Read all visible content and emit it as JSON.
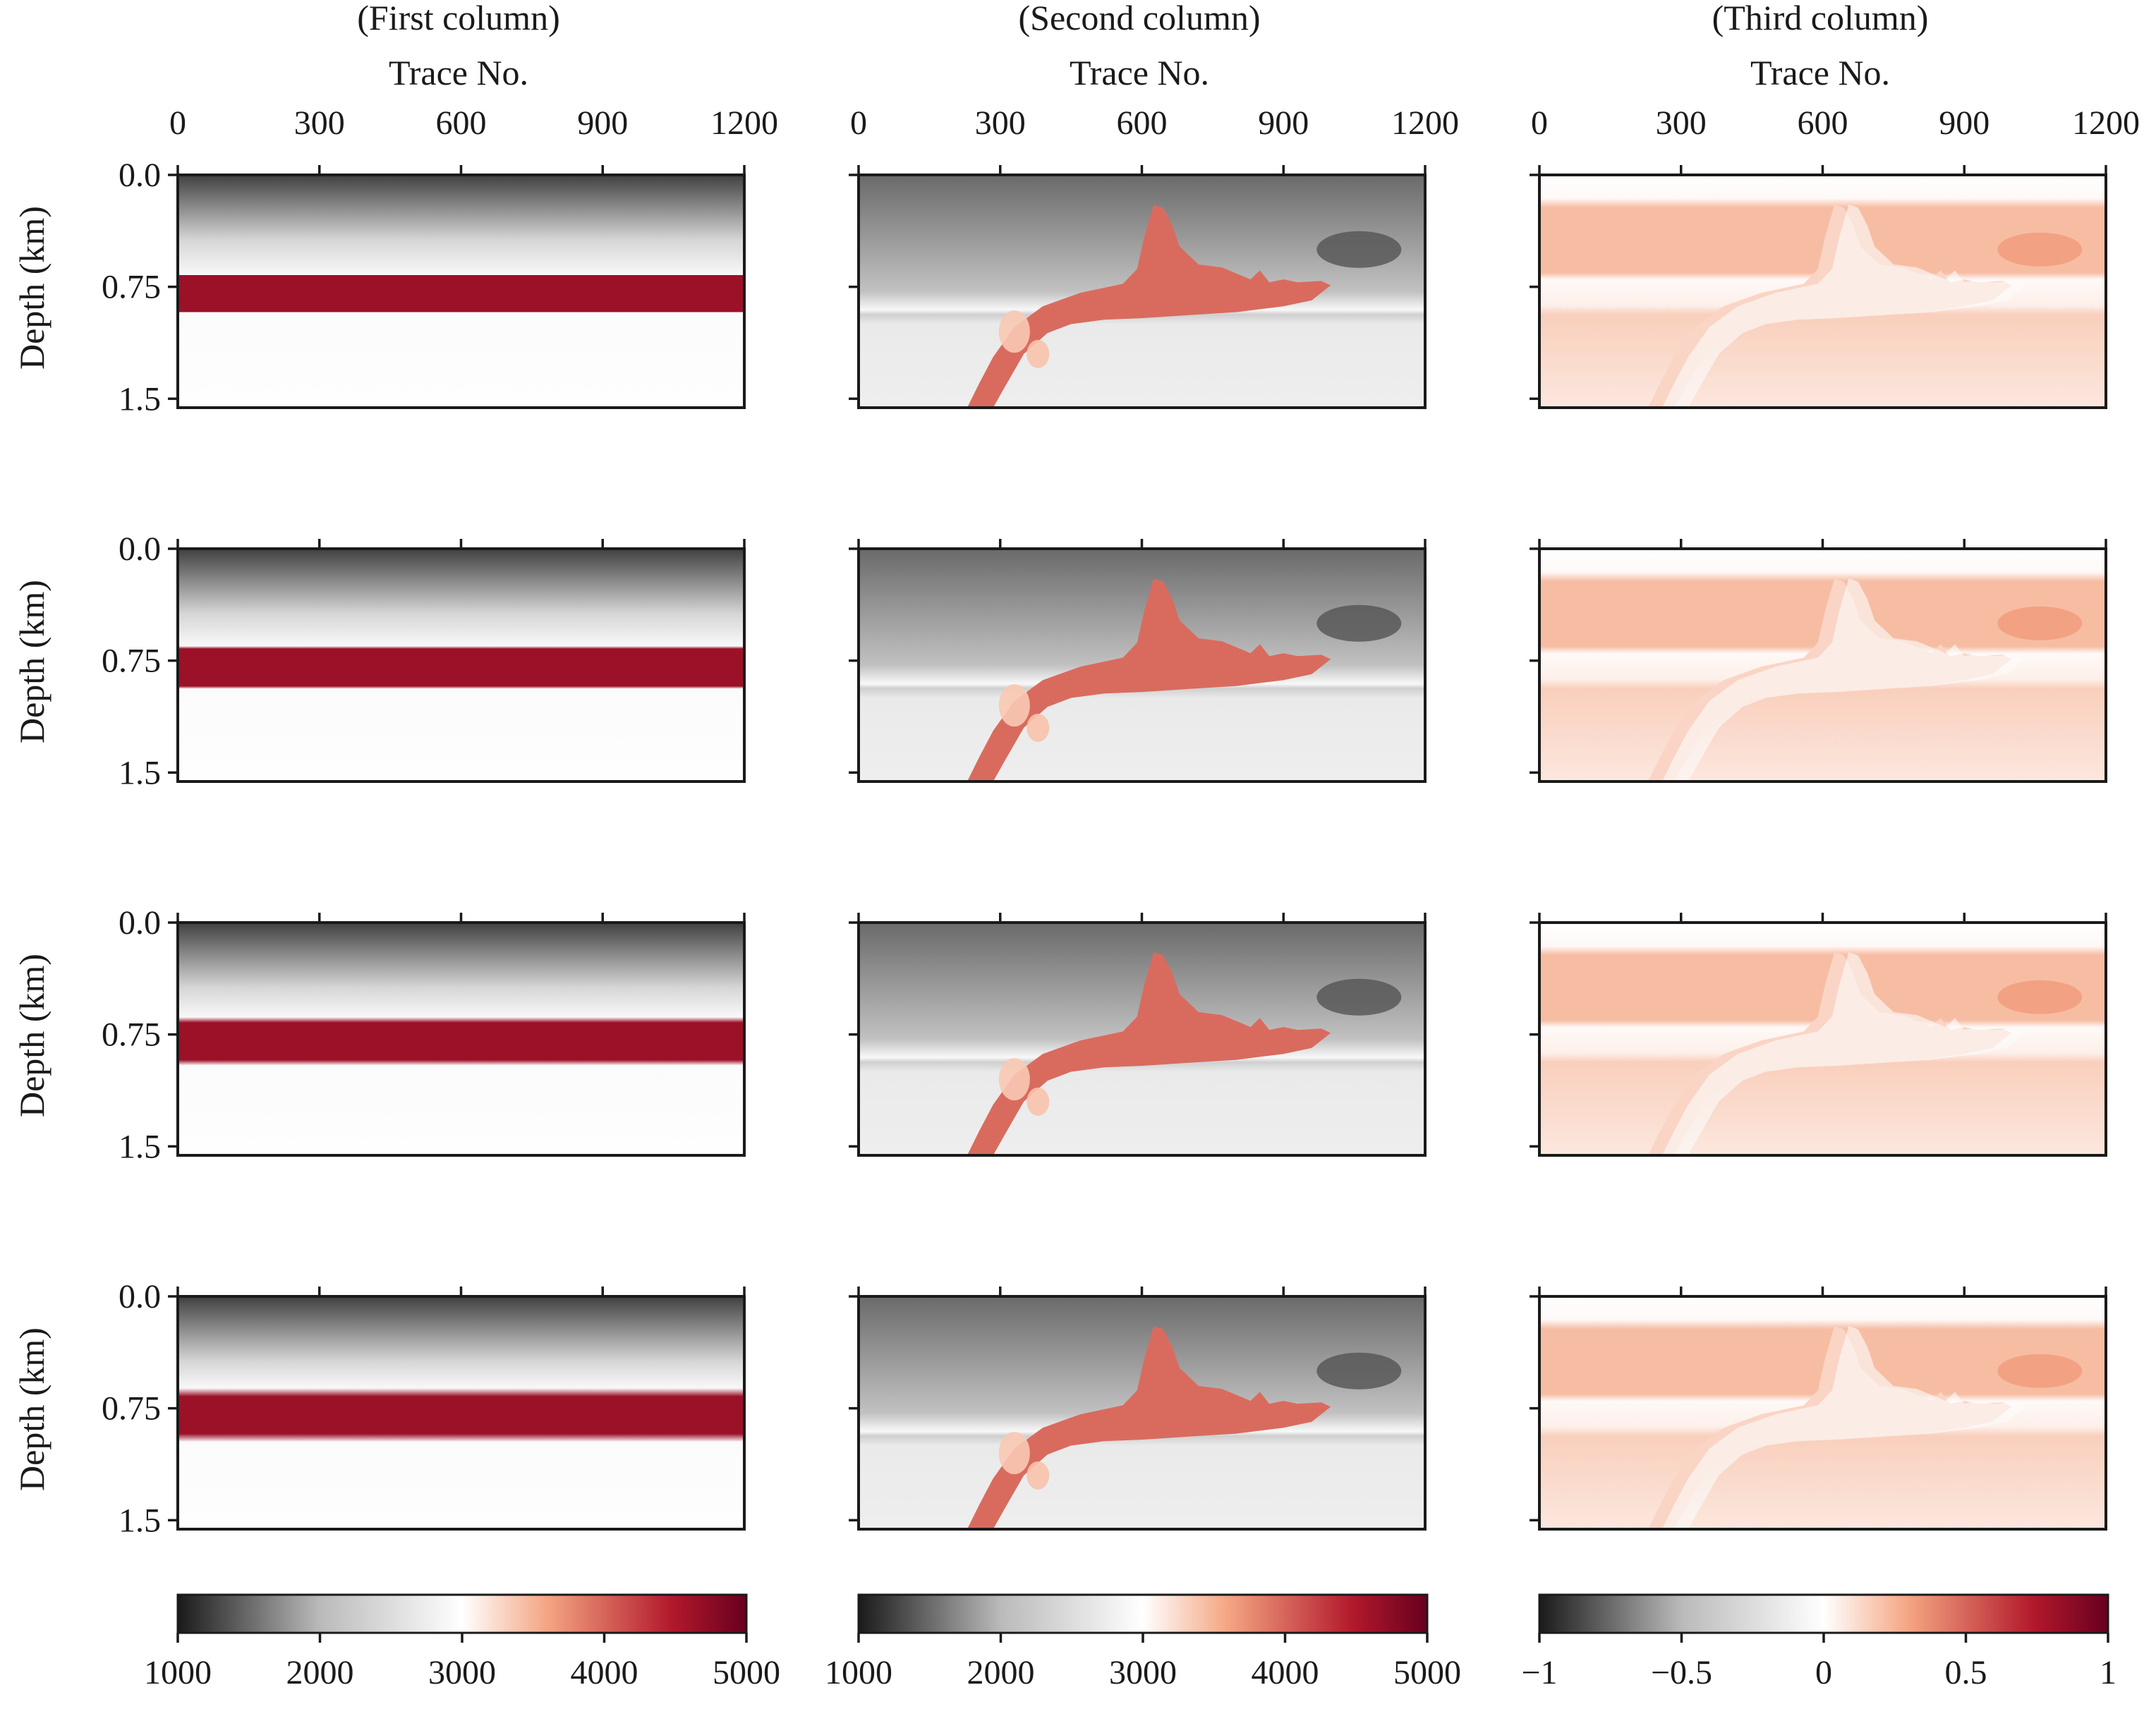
{
  "chart_data": {
    "type": "heatmap",
    "layout": {
      "rows": 4,
      "columns": 3
    },
    "columns": [
      {
        "title": "(First column)",
        "kind": "layered",
        "xlabel": "Trace No."
      },
      {
        "title": "(Second column)",
        "kind": "salt",
        "xlabel": "Trace No."
      },
      {
        "title": "(Third column)",
        "kind": "difference",
        "xlabel": "Trace No."
      }
    ],
    "rows": [
      {
        "layer_top": 0.43,
        "layer_bottom": 0.59,
        "blur": 0.0
      },
      {
        "layer_top": 0.43,
        "layer_bottom": 0.59,
        "blur": 0.012
      },
      {
        "layer_top": 0.43,
        "layer_bottom": 0.59,
        "blur": 0.024
      },
      {
        "layer_top": 0.43,
        "layer_bottom": 0.59,
        "blur": 0.036
      }
    ],
    "x_axis": {
      "label": "Trace No.",
      "range": [
        0,
        1200
      ],
      "ticks": [
        0,
        300,
        600,
        900,
        1200
      ],
      "tick_labels": [
        "0",
        "300",
        "600",
        "900",
        "1200"
      ]
    },
    "y_axis": {
      "label": "Depth (km)",
      "range": [
        0,
        1.56
      ],
      "ticks": [
        0.0,
        0.75,
        1.5
      ],
      "tick_labels": [
        "0.0",
        "0.75",
        "1.5"
      ]
    },
    "colorbars": [
      {
        "range": [
          1000,
          5000
        ],
        "ticks": [
          1000,
          2000,
          3000,
          4000,
          5000
        ],
        "tick_labels": [
          "1000",
          "2000",
          "3000",
          "4000",
          "5000"
        ]
      },
      {
        "range": [
          1000,
          5000
        ],
        "ticks": [
          1000,
          2000,
          3000,
          4000,
          5000
        ],
        "tick_labels": [
          "1000",
          "2000",
          "3000",
          "4000",
          "5000"
        ]
      },
      {
        "range": [
          -1,
          1
        ],
        "ticks": [
          -1,
          -0.5,
          0,
          0.5,
          1
        ],
        "tick_labels": [
          "−1",
          "−0.5",
          "0",
          "0.5",
          "1"
        ]
      }
    ],
    "colormap": {
      "name": "RdGy-reversed",
      "stops": [
        "#1a1a1a",
        "#bababa",
        "#ffffff",
        "#f4a582",
        "#b2182b",
        "#67001f"
      ]
    },
    "salt_body": {
      "outline": [
        [
          230,
          1.56
        ],
        [
          255,
          1.4
        ],
        [
          285,
          1.22
        ],
        [
          330,
          1.02
        ],
        [
          390,
          0.88
        ],
        [
          470,
          0.79
        ],
        [
          560,
          0.73
        ],
        [
          590,
          0.63
        ],
        [
          605,
          0.42
        ],
        [
          625,
          0.2
        ],
        [
          645,
          0.22
        ],
        [
          665,
          0.34
        ],
        [
          680,
          0.48
        ],
        [
          720,
          0.6
        ],
        [
          770,
          0.62
        ],
        [
          800,
          0.66
        ],
        [
          815,
          0.68
        ],
        [
          830,
          0.7
        ],
        [
          850,
          0.64
        ],
        [
          870,
          0.72
        ],
        [
          900,
          0.7
        ],
        [
          930,
          0.72
        ],
        [
          980,
          0.71
        ],
        [
          1000,
          0.74
        ],
        [
          960,
          0.84
        ],
        [
          900,
          0.88
        ],
        [
          800,
          0.92
        ],
        [
          700,
          0.94
        ],
        [
          600,
          0.96
        ],
        [
          520,
          0.97
        ],
        [
          450,
          1.0
        ],
        [
          400,
          1.06
        ],
        [
          350,
          1.2
        ],
        [
          310,
          1.42
        ],
        [
          285,
          1.56
        ]
      ],
      "overlap_value": 0.14,
      "interior_value": 0.36
    },
    "background_values": {
      "layered_top": -0.88,
      "layered_mid": -0.3,
      "layered_low": -0.05,
      "salt_bg_top": -0.75,
      "salt_bg_low": -0.12,
      "dark_patch": -0.82,
      "diff_above": 0.22,
      "diff_mid": 0.16,
      "diff_below": 0.08
    }
  }
}
